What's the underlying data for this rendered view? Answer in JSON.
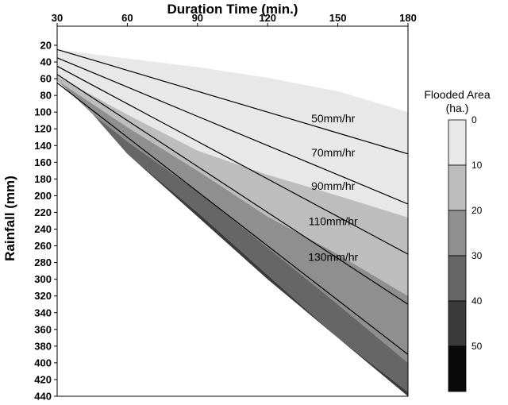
{
  "chart_data": {
    "type": "contour",
    "xlabel": "Duration Time (min.)",
    "ylabel": "Rainfall (mm)",
    "xlim": [
      30,
      180
    ],
    "ylim": [
      20,
      440
    ],
    "x_ticks": [
      30,
      60,
      90,
      120,
      150,
      180
    ],
    "y_ticks": [
      20,
      40,
      60,
      80,
      100,
      120,
      140,
      160,
      180,
      200,
      220,
      240,
      260,
      280,
      300,
      320,
      340,
      360,
      380,
      400,
      420,
      440
    ],
    "legend": {
      "title_line1": "Flooded Area",
      "title_line2": "(ha.)",
      "levels": [
        0,
        10,
        20,
        30,
        40,
        50
      ],
      "colors": [
        "#e8e8e8",
        "#bdbdbd",
        "#8f8f8f",
        "#666666",
        "#3a3a3a",
        "#0a0a0a"
      ]
    },
    "flooded_bands": [
      {
        "level_min": 0,
        "level_max": 10,
        "color": "#e8e8e8",
        "upper": [
          [
            30,
            25
          ],
          [
            60,
            36
          ],
          [
            90,
            46
          ],
          [
            120,
            59
          ],
          [
            150,
            75
          ],
          [
            180,
            100
          ]
        ],
        "lower": [
          [
            30,
            57
          ],
          [
            60,
            103
          ],
          [
            90,
            146
          ],
          [
            120,
            175
          ],
          [
            150,
            200
          ],
          [
            180,
            226
          ]
        ]
      },
      {
        "level_min": 10,
        "level_max": 20,
        "color": "#bdbdbd",
        "upper": [
          [
            30,
            57
          ],
          [
            60,
            103
          ],
          [
            90,
            146
          ],
          [
            120,
            175
          ],
          [
            150,
            200
          ],
          [
            180,
            226
          ]
        ],
        "lower": [
          [
            30,
            62
          ],
          [
            60,
            118
          ],
          [
            90,
            170
          ],
          [
            120,
            225
          ],
          [
            150,
            270
          ],
          [
            180,
            320
          ]
        ]
      },
      {
        "level_min": 20,
        "level_max": 30,
        "color": "#8f8f8f",
        "upper": [
          [
            30,
            62
          ],
          [
            60,
            118
          ],
          [
            90,
            170
          ],
          [
            120,
            225
          ],
          [
            150,
            270
          ],
          [
            180,
            320
          ]
        ],
        "lower": [
          [
            45,
            102
          ],
          [
            60,
            135
          ],
          [
            90,
            195
          ],
          [
            120,
            262
          ],
          [
            150,
            330
          ],
          [
            180,
            400
          ]
        ]
      },
      {
        "level_min": 30,
        "level_max": 40,
        "color": "#666666",
        "upper": [
          [
            45,
            102
          ],
          [
            60,
            135
          ],
          [
            90,
            195
          ],
          [
            120,
            262
          ],
          [
            150,
            330
          ],
          [
            180,
            400
          ]
        ],
        "lower": [
          [
            60,
            150
          ],
          [
            90,
            220
          ],
          [
            120,
            295
          ],
          [
            150,
            370
          ],
          [
            180,
            435
          ]
        ]
      },
      {
        "level_min": 40,
        "level_max": 50,
        "color": "#3a3a3a",
        "upper": [
          [
            60,
            150
          ],
          [
            90,
            220
          ],
          [
            120,
            295
          ],
          [
            150,
            370
          ],
          [
            180,
            435
          ]
        ],
        "lower": [
          [
            60,
            150
          ],
          [
            120,
            300
          ],
          [
            180,
            440
          ]
        ]
      }
    ],
    "intensity_lines": [
      {
        "name": "50mm/hr",
        "points": [
          [
            30,
            25
          ],
          [
            60,
            50
          ],
          [
            90,
            75
          ],
          [
            120,
            100
          ],
          [
            150,
            125
          ],
          [
            180,
            150
          ]
        ]
      },
      {
        "name": "70mm/hr",
        "points": [
          [
            30,
            35
          ],
          [
            60,
            70
          ],
          [
            90,
            105
          ],
          [
            120,
            140
          ],
          [
            150,
            175
          ],
          [
            180,
            210
          ]
        ]
      },
      {
        "name": "90mm/hr",
        "points": [
          [
            30,
            45
          ],
          [
            60,
            90
          ],
          [
            90,
            135
          ],
          [
            120,
            180
          ],
          [
            150,
            225
          ],
          [
            180,
            270
          ]
        ]
      },
      {
        "name": "110mm/hr",
        "points": [
          [
            30,
            55
          ],
          [
            60,
            110
          ],
          [
            90,
            165
          ],
          [
            120,
            220
          ],
          [
            150,
            275
          ],
          [
            180,
            330
          ]
        ]
      },
      {
        "name": "130mm/hr",
        "points": [
          [
            30,
            65
          ],
          [
            60,
            130
          ],
          [
            90,
            195
          ],
          [
            120,
            260
          ],
          [
            150,
            325
          ],
          [
            180,
            390
          ]
        ]
      }
    ],
    "intensity_label_positions": [
      {
        "name": "50mm/hr",
        "x": 148,
        "y": 112
      },
      {
        "name": "70mm/hr",
        "x": 148,
        "y": 153
      },
      {
        "name": "90mm/hr",
        "x": 148,
        "y": 193
      },
      {
        "name": "110mm/hr",
        "x": 148,
        "y": 235
      },
      {
        "name": "130mm/hr",
        "x": 148,
        "y": 278
      }
    ]
  }
}
